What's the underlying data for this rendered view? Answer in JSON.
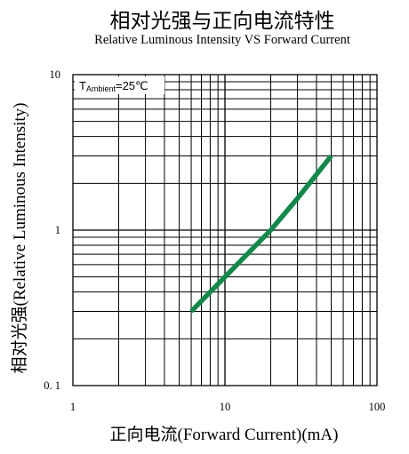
{
  "chart_data": {
    "type": "line",
    "title": "相对光强与正向电流特性",
    "subtitle": "Relative Luminous Intensity VS Forward Current",
    "xlabel": "正向电流(Forward Current)(mA)",
    "ylabel": "相对光强(Relative Luminous Intensity)",
    "x_scale": "log",
    "y_scale": "log",
    "xlim": [
      1,
      100
    ],
    "ylim": [
      0.1,
      10
    ],
    "x_ticks": [
      "1",
      "10",
      "100"
    ],
    "y_ticks": [
      "0. 1",
      "1",
      "10"
    ],
    "grid": true,
    "annotation": {
      "main": "T",
      "sub": "Ambient",
      "tail": "=25℃"
    },
    "series": [
      {
        "color": "#13884a",
        "x": [
          6,
          10,
          20,
          30,
          50
        ],
        "y": [
          0.3,
          0.5,
          1.0,
          1.6,
          3.0
        ]
      }
    ]
  }
}
